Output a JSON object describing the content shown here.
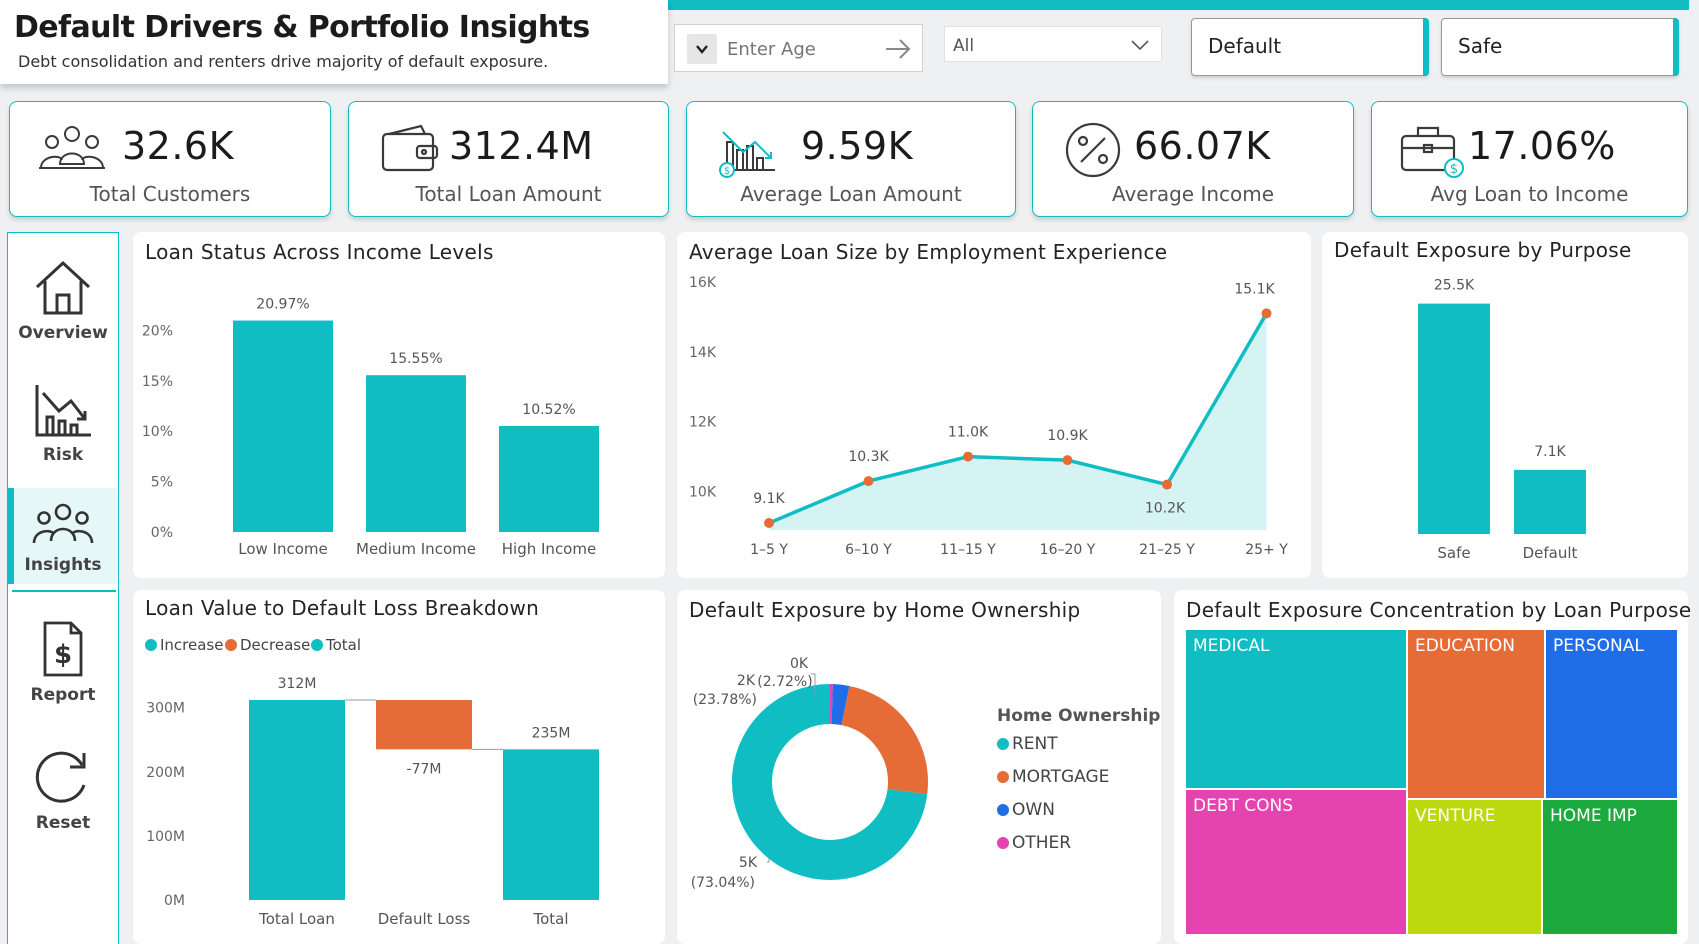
{
  "header": {
    "title": "Default Drivers & Portfolio Insights",
    "subtitle": "Debt consolidation and renters drive majority of default exposure."
  },
  "filters": {
    "age_placeholder": "Enter Age",
    "dropdown_value": "All",
    "toggle_default": "Default",
    "toggle_safe": "Safe"
  },
  "kpis": [
    {
      "value": "32.6K",
      "label": "Total Customers",
      "icon": "customers-icon"
    },
    {
      "value": "312.4M",
      "label": "Total Loan Amount",
      "icon": "wallet-icon"
    },
    {
      "value": "9.59K",
      "label": "Average Loan Amount",
      "icon": "chart-dollar-icon"
    },
    {
      "value": "66.07K",
      "label": "Average Income",
      "icon": "percent-icon"
    },
    {
      "value": "17.06%",
      "label": "Avg Loan to Income",
      "icon": "briefcase-dollar-icon"
    }
  ],
  "nav": {
    "overview": "Overview",
    "risk": "Risk",
    "insights": "Insights",
    "report": "Report",
    "reset": "Reset"
  },
  "colors": {
    "teal": "#0fbdc2",
    "orange": "#e66c37",
    "blue": "#1f6ee8",
    "pink": "#e544b0"
  },
  "chart_data": [
    {
      "id": "income",
      "type": "bar",
      "title": "Loan Status Across Income Levels",
      "categories": [
        "Low Income",
        "Medium Income",
        "High Income"
      ],
      "values": [
        20.97,
        15.55,
        10.52
      ],
      "value_labels": [
        "20.97%",
        "15.55%",
        "10.52%"
      ],
      "y_ticks": [
        0,
        5,
        10,
        15,
        20
      ],
      "y_tick_labels": [
        "0%",
        "5%",
        "10%",
        "15%",
        "20%"
      ],
      "ylim": [
        0,
        24
      ]
    },
    {
      "id": "employment",
      "type": "area",
      "title": "Average Loan Size by Employment Experience",
      "categories": [
        "1–5 Y",
        "6–10 Y",
        "11–15 Y",
        "16–20 Y",
        "21–25 Y",
        "25+ Y"
      ],
      "values": [
        9.1,
        10.3,
        11.0,
        10.9,
        10.2,
        15.1
      ],
      "value_labels": [
        "9.1K",
        "10.3K",
        "11.0K",
        "10.9K",
        "10.2K",
        "15.1K"
      ],
      "y_ticks": [
        10,
        12,
        14,
        16
      ],
      "y_tick_labels": [
        "10K",
        "12K",
        "14K",
        "16K"
      ],
      "ylim": [
        8.9,
        16
      ]
    },
    {
      "id": "purpose",
      "type": "bar",
      "title": "Default Exposure by Purpose",
      "categories": [
        "Safe",
        "Default"
      ],
      "values": [
        25.5,
        7.1
      ],
      "value_labels": [
        "25.5K",
        "7.1K"
      ],
      "ylim": [
        0,
        29
      ]
    },
    {
      "id": "waterfall",
      "type": "bar",
      "title": "Loan Value to Default Loss Breakdown",
      "legend": [
        "Increase",
        "Decrease",
        "Total"
      ],
      "categories": [
        "Total Loan",
        "Default Loss",
        "Total"
      ],
      "values": [
        312,
        -77,
        235
      ],
      "value_labels": [
        "312M",
        "-77M",
        "235M"
      ],
      "y_ticks": [
        0,
        100,
        200,
        300
      ],
      "y_tick_labels": [
        "0M",
        "100M",
        "200M",
        "300M"
      ],
      "ylim": [
        0,
        312
      ]
    },
    {
      "id": "home",
      "type": "pie",
      "title": "Default Exposure by Home Ownership",
      "legend_title": "Home Ownership",
      "categories": [
        "RENT",
        "MORTGAGE",
        "OWN",
        "OTHER"
      ],
      "values": [
        73.04,
        23.78,
        2.72,
        0.46
      ],
      "labels": [
        {
          "value": "5K",
          "pct": "(73.04%)"
        },
        {
          "value": "2K",
          "pct": "(23.78%)"
        },
        {
          "value": "0K",
          "pct": "(2.72%)"
        }
      ]
    },
    {
      "id": "treemap",
      "type": "heatmap",
      "title": "Default Exposure Concentration by Loan Purpose",
      "categories": [
        "MEDICAL",
        "EDUCATION",
        "PERSONAL",
        "DEBT CONS",
        "VENTURE",
        "HOME IMP"
      ]
    }
  ]
}
